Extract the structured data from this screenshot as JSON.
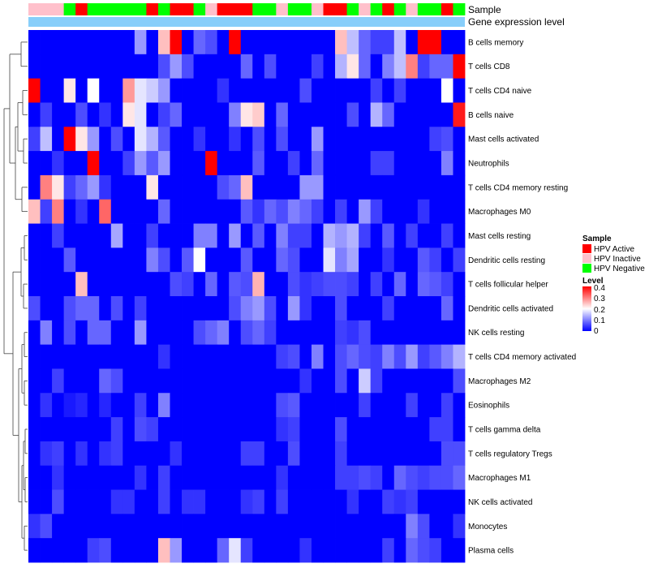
{
  "chart_data": {
    "type": "heatmap",
    "title": "",
    "annotation_labels": [
      "Sample",
      "Gene expression level"
    ],
    "rows": [
      "B cells memory",
      "T cells CD8",
      "T cells CD4 naive",
      "B cells naive",
      "Mast cells activated",
      "Neutrophils",
      "T cells CD4 memory resting",
      "Macrophages M0",
      "Mast cells resting",
      "Dendritic cells resting",
      "T cells follicular helper",
      "Dendritic cells activated",
      "NK cells resting",
      "T cells CD4 memory activated",
      "Macrophages M2",
      "Eosinophils",
      "T cells gamma delta",
      "T cells regulatory  Tregs",
      "Macrophages M1",
      "NK cells activated",
      "Monocytes",
      "Plasma cells"
    ],
    "sample_groups": [
      "Inactive",
      "Inactive",
      "Inactive",
      "Negative",
      "Active",
      "Negative",
      "Negative",
      "Negative",
      "Negative",
      "Negative",
      "Active",
      "Negative",
      "Active",
      "Active",
      "Negative",
      "Inactive",
      "Active",
      "Active",
      "Active",
      "Negative",
      "Negative",
      "Inactive",
      "Negative",
      "Negative",
      "Inactive",
      "Active",
      "Active",
      "Negative",
      "Inactive",
      "Negative",
      "Active",
      "Negative",
      "Inactive",
      "Negative",
      "Negative",
      "Active",
      "Negative"
    ],
    "legend_sample": {
      "title": "Sample",
      "entries": [
        {
          "label": "HPV Active",
          "color": "#ff0000"
        },
        {
          "label": "HPV Inactive",
          "color": "#ffc0cb"
        },
        {
          "label": "HPV Negative",
          "color": "#00ff00"
        }
      ]
    },
    "legend_level": {
      "title": "Level",
      "ticks": [
        "0.4",
        "0.3",
        "0.2",
        "0.1",
        "0"
      ],
      "range": [
        0,
        0.4
      ]
    },
    "values": [
      [
        0,
        0,
        0,
        0,
        0,
        0,
        0,
        0,
        0,
        0.12,
        0,
        0.25,
        0.4,
        0,
        0.08,
        0.06,
        0,
        0.4,
        0,
        0,
        0,
        0,
        0,
        0,
        0,
        0,
        0.25,
        0.15,
        0.08,
        0.05,
        0.05,
        0.15,
        0,
        0.4,
        0.4,
        0,
        0
      ],
      [
        0,
        0,
        0,
        0,
        0,
        0,
        0,
        0,
        0,
        0,
        0,
        0.06,
        0.12,
        0.06,
        0,
        0,
        0,
        0,
        0.08,
        0,
        0.06,
        0,
        0,
        0,
        0.05,
        0,
        0.14,
        0.22,
        0.08,
        0,
        0.1,
        0.15,
        0.3,
        0.05,
        0.08,
        0.08,
        0.4
      ],
      [
        0.4,
        0,
        0,
        0.22,
        0,
        0.2,
        0,
        0,
        0.28,
        0.18,
        0.16,
        0.12,
        0,
        0,
        0,
        0,
        0.04,
        0,
        0,
        0,
        0,
        0,
        0,
        0.06,
        0,
        0,
        0,
        0,
        0,
        0.05,
        0,
        0.05,
        0,
        0,
        0,
        0.2,
        0
      ],
      [
        0,
        0.05,
        0,
        0,
        0.06,
        0,
        0.04,
        0,
        0.22,
        0.18,
        0,
        0.05,
        0.08,
        0,
        0,
        0,
        0,
        0.1,
        0.22,
        0.24,
        0,
        0.08,
        0,
        0,
        0,
        0,
        0,
        0.06,
        0,
        0.14,
        0.08,
        0,
        0,
        0,
        0,
        0,
        0.38
      ],
      [
        0.05,
        0.15,
        0,
        0.4,
        0.22,
        0.12,
        0,
        0.06,
        0,
        0.18,
        0.14,
        0.07,
        0,
        0,
        0.04,
        0,
        0,
        0.04,
        0,
        0.06,
        0,
        0.06,
        0,
        0,
        0.12,
        0,
        0,
        0,
        0,
        0,
        0,
        0,
        0,
        0,
        0.05,
        0.06,
        0
      ],
      [
        0,
        0,
        0.04,
        0,
        0,
        0.4,
        0,
        0,
        0.05,
        0.12,
        0.07,
        0.12,
        0,
        0,
        0,
        0.4,
        0,
        0,
        0,
        0.07,
        0,
        0,
        0.05,
        0,
        0.08,
        0,
        0,
        0,
        0,
        0.05,
        0.05,
        0,
        0,
        0,
        0,
        0.1,
        0
      ],
      [
        0,
        0.3,
        0.22,
        0.05,
        0.08,
        0.12,
        0.04,
        0,
        0,
        0,
        0.22,
        0,
        0,
        0,
        0,
        0,
        0.06,
        0.08,
        0.25,
        0,
        0,
        0,
        0,
        0.12,
        0.12,
        0,
        0,
        0,
        0,
        0,
        0,
        0,
        0,
        0,
        0,
        0,
        0
      ],
      [
        0.25,
        0.05,
        0.3,
        0,
        0.04,
        0,
        0.32,
        0,
        0,
        0,
        0,
        0.08,
        0,
        0,
        0,
        0,
        0,
        0,
        0.07,
        0.04,
        0.08,
        0.06,
        0.1,
        0.08,
        0.05,
        0,
        0.05,
        0,
        0.12,
        0.05,
        0,
        0,
        0,
        0.04,
        0,
        0,
        0
      ],
      [
        0,
        0,
        0.05,
        0,
        0,
        0,
        0,
        0.13,
        0,
        0,
        0.05,
        0,
        0,
        0,
        0.1,
        0.1,
        0,
        0.12,
        0,
        0.07,
        0,
        0.1,
        0.05,
        0.05,
        0,
        0.14,
        0.12,
        0.14,
        0.05,
        0,
        0.07,
        0,
        0.05,
        0,
        0,
        0.05,
        0
      ],
      [
        0,
        0,
        0,
        0.07,
        0,
        0,
        0,
        0,
        0,
        0,
        0.1,
        0.06,
        0,
        0.07,
        0.2,
        0,
        0,
        0,
        0.07,
        0,
        0,
        0.08,
        0.06,
        0,
        0,
        0.18,
        0.1,
        0.13,
        0,
        0,
        0.04,
        0,
        0,
        0.07,
        0.05,
        0,
        0.05
      ],
      [
        0,
        0,
        0,
        0,
        0.25,
        0,
        0,
        0,
        0,
        0,
        0,
        0,
        0.06,
        0.05,
        0,
        0.08,
        0,
        0.07,
        0.06,
        0.26,
        0,
        0,
        0.06,
        0.04,
        0.05,
        0.06,
        0.06,
        0.05,
        0,
        0.05,
        0,
        0.08,
        0,
        0.08,
        0.07,
        0.05,
        0
      ],
      [
        0.06,
        0,
        0,
        0.06,
        0.08,
        0.08,
        0,
        0.06,
        0,
        0.05,
        0,
        0,
        0,
        0,
        0,
        0,
        0,
        0.06,
        0.1,
        0.12,
        0.06,
        0,
        0.12,
        0.04,
        0,
        0,
        0.06,
        0,
        0,
        0,
        0.05,
        0,
        0,
        0,
        0,
        0.08,
        0
      ],
      [
        0,
        0.1,
        0,
        0.06,
        0,
        0.08,
        0.08,
        0,
        0,
        0.12,
        0,
        0,
        0,
        0,
        0.06,
        0.08,
        0.1,
        0,
        0.06,
        0.08,
        0.05,
        0,
        0,
        0,
        0,
        0,
        0.05,
        0.04,
        0.06,
        0,
        0,
        0,
        0,
        0,
        0,
        0,
        0
      ],
      [
        0,
        0,
        0,
        0,
        0,
        0,
        0,
        0,
        0,
        0,
        0,
        0.04,
        0,
        0,
        0,
        0,
        0,
        0,
        0,
        0,
        0,
        0.05,
        0.06,
        0,
        0.1,
        0,
        0.06,
        0.08,
        0.06,
        0.05,
        0.1,
        0.06,
        0.12,
        0.05,
        0.07,
        0.1,
        0.14
      ],
      [
        0,
        0,
        0.05,
        0,
        0,
        0,
        0.08,
        0.06,
        0,
        0,
        0,
        0,
        0,
        0,
        0,
        0,
        0,
        0,
        0,
        0,
        0,
        0,
        0,
        0.04,
        0,
        0,
        0.06,
        0,
        0.16,
        0.05,
        0,
        0,
        0,
        0,
        0,
        0,
        0.06
      ],
      [
        0,
        0.04,
        0,
        0.02,
        0.03,
        0,
        0.03,
        0,
        0,
        0.05,
        0,
        0.1,
        0,
        0,
        0,
        0,
        0,
        0,
        0,
        0,
        0,
        0.06,
        0.07,
        0,
        0,
        0,
        0,
        0,
        0.05,
        0,
        0,
        0,
        0.05,
        0,
        0,
        0.05,
        0
      ],
      [
        0,
        0,
        0,
        0,
        0,
        0,
        0,
        0.05,
        0,
        0.06,
        0.05,
        0,
        0,
        0,
        0,
        0,
        0,
        0,
        0,
        0,
        0,
        0.04,
        0.05,
        0,
        0,
        0,
        0.06,
        0,
        0,
        0,
        0,
        0,
        0,
        0,
        0.05,
        0.05,
        0
      ],
      [
        0,
        0.04,
        0.05,
        0,
        0.04,
        0,
        0.04,
        0.05,
        0,
        0,
        0,
        0,
        0.04,
        0,
        0,
        0,
        0,
        0,
        0.05,
        0.05,
        0,
        0,
        0.06,
        0,
        0,
        0,
        0.05,
        0,
        0,
        0,
        0,
        0,
        0,
        0,
        0,
        0.06,
        0.06
      ],
      [
        0,
        0,
        0.04,
        0,
        0,
        0,
        0,
        0,
        0,
        0.04,
        0,
        0.05,
        0,
        0,
        0,
        0,
        0,
        0,
        0,
        0,
        0,
        0.04,
        0,
        0,
        0,
        0,
        0.05,
        0.05,
        0.06,
        0.05,
        0,
        0.08,
        0.06,
        0.05,
        0.06,
        0.06,
        0.08
      ],
      [
        0,
        0,
        0.06,
        0,
        0,
        0,
        0,
        0.04,
        0.04,
        0,
        0,
        0.05,
        0,
        0.04,
        0.04,
        0,
        0,
        0,
        0.04,
        0.05,
        0,
        0.05,
        0,
        0,
        0,
        0,
        0,
        0.04,
        0,
        0,
        0.05,
        0.04,
        0.05,
        0,
        0,
        0,
        0
      ],
      [
        0.04,
        0.06,
        0,
        0,
        0,
        0,
        0,
        0,
        0,
        0,
        0,
        0,
        0,
        0,
        0,
        0,
        0,
        0,
        0,
        0,
        0,
        0,
        0,
        0,
        0,
        0,
        0,
        0,
        0,
        0,
        0,
        0,
        0.1,
        0.06,
        0,
        0,
        0.04
      ],
      [
        0,
        0,
        0,
        0,
        0,
        0.05,
        0.06,
        0,
        0,
        0,
        0,
        0.25,
        0.12,
        0,
        0,
        0,
        0.08,
        0.18,
        0.05,
        0,
        0,
        0,
        0,
        0.04,
        0,
        0,
        0,
        0,
        0,
        0,
        0.05,
        0,
        0.08,
        0.06,
        0.05,
        0,
        0
      ]
    ]
  }
}
